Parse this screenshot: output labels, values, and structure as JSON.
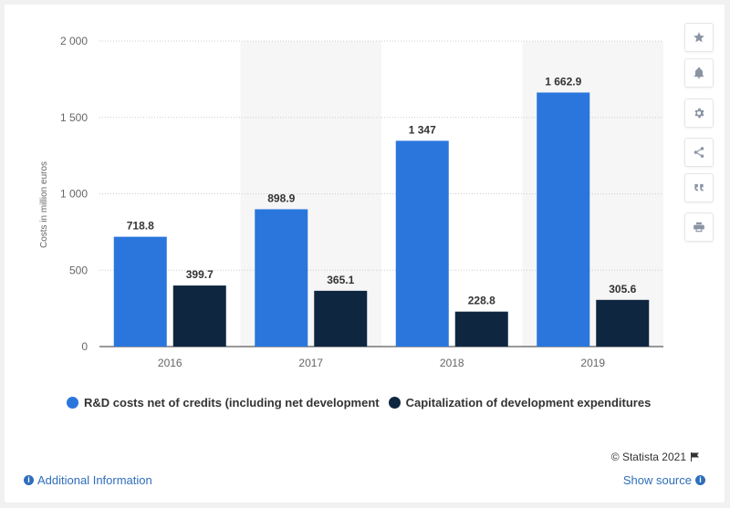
{
  "chart_data": {
    "type": "bar",
    "categories": [
      "2016",
      "2017",
      "2018",
      "2019"
    ],
    "series": [
      {
        "name": "R&D costs net of credits (including net development",
        "values": [
          718.8,
          898.9,
          1347,
          1662.9
        ],
        "labels": [
          "718.8",
          "898.9",
          "1 347",
          "1 662.9"
        ],
        "color": "#2a76dd"
      },
      {
        "name": "Capitalization of development expenditures",
        "values": [
          399.7,
          365.1,
          228.8,
          305.6
        ],
        "labels": [
          "399.7",
          "365.1",
          "228.8",
          "305.6"
        ],
        "color": "#0f2640"
      }
    ],
    "ylabel": "Costs in million euros",
    "ylim": [
      0,
      2000
    ],
    "yticks": [
      0,
      500,
      1000,
      1500,
      2000
    ],
    "ytick_labels": [
      "0",
      "500",
      "1 000",
      "1 500",
      "2 000"
    ],
    "grid": true,
    "legend": "bottom"
  },
  "ui": {
    "credits": "© Statista 2021",
    "additional_info": "Additional Information",
    "show_source": "Show source",
    "info_glyph": "i",
    "sidebar_icons": [
      "star-icon",
      "bell-icon",
      "gear-icon",
      "share-icon",
      "quote-icon",
      "print-icon"
    ]
  },
  "colors": {
    "accent": "#2f6eba",
    "series1": "#2a76dd",
    "series2": "#0f2640",
    "band": "#f6f6f6"
  }
}
